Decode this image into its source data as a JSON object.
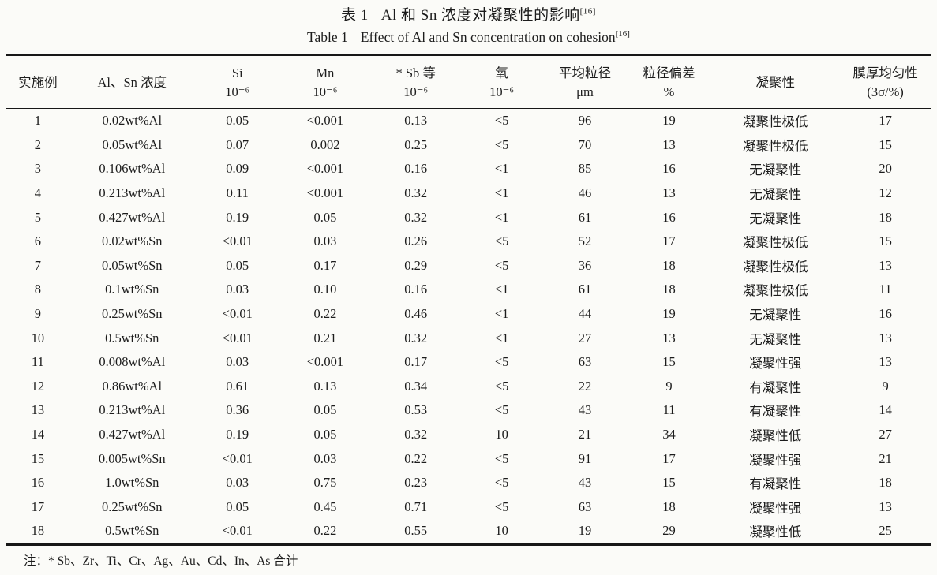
{
  "page": {
    "background": "#fbfbf8",
    "ink": "#1c1c1c"
  },
  "caption": {
    "zh": {
      "label": "表 1",
      "text": "Al 和 Sn 浓度对凝聚性的影响",
      "ref": "[16]"
    },
    "en": {
      "label": "Table 1",
      "text": "Effect of Al and Sn concentration on cohesion",
      "ref": "[16]"
    }
  },
  "table": {
    "columns": [
      {
        "id": "example-no",
        "line1": "实施例",
        "line2": ""
      },
      {
        "id": "al-sn-concentration",
        "line1": "Al、Sn 浓度",
        "line2": ""
      },
      {
        "id": "si",
        "line1": "Si",
        "line2": "10⁻⁶"
      },
      {
        "id": "mn",
        "line1": "Mn",
        "line2": "10⁻⁶"
      },
      {
        "id": "sb-etc",
        "line1": "* Sb 等",
        "line2": "10⁻⁶"
      },
      {
        "id": "oxygen",
        "line1": "氧",
        "line2": "10⁻⁶"
      },
      {
        "id": "mean-particle-size",
        "line1": "平均粒径",
        "line2": "μm"
      },
      {
        "id": "size-deviation",
        "line1": "粒径偏差",
        "line2": "%"
      },
      {
        "id": "cohesion",
        "line1": "凝聚性",
        "line2": ""
      },
      {
        "id": "film-uniformity",
        "line1": "膜厚均匀性",
        "line2": "(3σ/%)"
      }
    ],
    "col_widths_percent": [
      6.8,
      13.6,
      9.2,
      9.8,
      9.8,
      8.8,
      9.2,
      9.0,
      14.0,
      9.8
    ],
    "rows": [
      [
        "1",
        "0.02wt%Al",
        "0.05",
        "<0.001",
        "0.13",
        "<5",
        "96",
        "19",
        "凝聚性极低",
        "17"
      ],
      [
        "2",
        "0.05wt%Al",
        "0.07",
        "0.002",
        "0.25",
        "<5",
        "70",
        "13",
        "凝聚性极低",
        "15"
      ],
      [
        "3",
        "0.106wt%Al",
        "0.09",
        "<0.001",
        "0.16",
        "<1",
        "85",
        "16",
        "无凝聚性",
        "20"
      ],
      [
        "4",
        "0.213wt%Al",
        "0.11",
        "<0.001",
        "0.32",
        "<1",
        "46",
        "13",
        "无凝聚性",
        "12"
      ],
      [
        "5",
        "0.427wt%Al",
        "0.19",
        "0.05",
        "0.32",
        "<1",
        "61",
        "16",
        "无凝聚性",
        "18"
      ],
      [
        "6",
        "0.02wt%Sn",
        "<0.01",
        "0.03",
        "0.26",
        "<5",
        "52",
        "17",
        "凝聚性极低",
        "15"
      ],
      [
        "7",
        "0.05wt%Sn",
        "0.05",
        "0.17",
        "0.29",
        "<5",
        "36",
        "18",
        "凝聚性极低",
        "13"
      ],
      [
        "8",
        "0.1wt%Sn",
        "0.03",
        "0.10",
        "0.16",
        "<1",
        "61",
        "18",
        "凝聚性极低",
        "11"
      ],
      [
        "9",
        "0.25wt%Sn",
        "<0.01",
        "0.22",
        "0.46",
        "<1",
        "44",
        "19",
        "无凝聚性",
        "16"
      ],
      [
        "10",
        "0.5wt%Sn",
        "<0.01",
        "0.21",
        "0.32",
        "<1",
        "27",
        "13",
        "无凝聚性",
        "13"
      ],
      [
        "11",
        "0.008wt%Al",
        "0.03",
        "<0.001",
        "0.17",
        "<5",
        "63",
        "15",
        "凝聚性强",
        "13"
      ],
      [
        "12",
        "0.86wt%Al",
        "0.61",
        "0.13",
        "0.34",
        "<5",
        "22",
        "9",
        "有凝聚性",
        "9"
      ],
      [
        "13",
        "0.213wt%Al",
        "0.36",
        "0.05",
        "0.53",
        "<5",
        "43",
        "11",
        "有凝聚性",
        "14"
      ],
      [
        "14",
        "0.427wt%Al",
        "0.19",
        "0.05",
        "0.32",
        "10",
        "21",
        "34",
        "凝聚性低",
        "27"
      ],
      [
        "15",
        "0.005wt%Sn",
        "<0.01",
        "0.03",
        "0.22",
        "<5",
        "91",
        "17",
        "凝聚性强",
        "21"
      ],
      [
        "16",
        "1.0wt%Sn",
        "0.03",
        "0.75",
        "0.23",
        "<5",
        "43",
        "15",
        "有凝聚性",
        "18"
      ],
      [
        "17",
        "0.25wt%Sn",
        "0.05",
        "0.45",
        "0.71",
        "<5",
        "63",
        "18",
        "凝聚性强",
        "13"
      ],
      [
        "18",
        "0.5wt%Sn",
        "<0.01",
        "0.22",
        "0.55",
        "10",
        "19",
        "29",
        "凝聚性低",
        "25"
      ]
    ]
  },
  "footnote": "注：* Sb、Zr、Ti、Cr、Ag、Au、Cd、In、As 合计"
}
